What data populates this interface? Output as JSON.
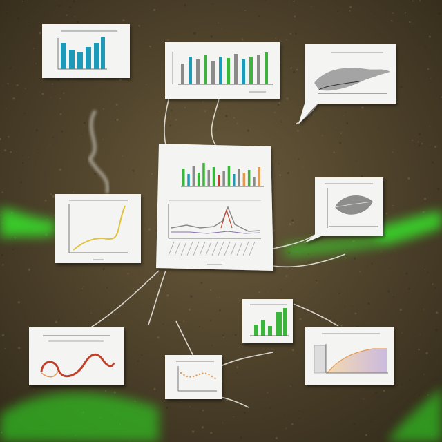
{
  "scene": {
    "background_color": "#4d4430",
    "glow_color": "#39e22a",
    "card_color": "#f4f4f2",
    "string_color": "#e9e6dd",
    "chart_colors": {
      "teal": "#1f9ab8",
      "green": "#3db43a",
      "gray": "#8a8a8a",
      "yellow": "#e0c23a",
      "red": "#c2402c",
      "orange": "#e39a54",
      "purple": "#8a6fb0"
    },
    "cards": [
      {
        "name": "card-bar-chart-top-left",
        "chart": "bars"
      },
      {
        "name": "card-bar-chart-top-center",
        "chart": "bars"
      },
      {
        "name": "card-fish-sketch-top-right",
        "chart": "sketch"
      },
      {
        "name": "card-central-dashboard",
        "chart": "bars-and-line"
      },
      {
        "name": "card-curve-chart-left",
        "chart": "line"
      },
      {
        "name": "card-leaf-sketch-right",
        "chart": "sketch"
      },
      {
        "name": "card-small-bar-chart",
        "chart": "bars"
      },
      {
        "name": "card-ribbon-sketch-bottom-left",
        "chart": "sketch"
      },
      {
        "name": "card-dotted-chart-bottom-center",
        "chart": "line"
      },
      {
        "name": "card-gradient-chart-bottom-right",
        "chart": "line"
      }
    ]
  }
}
